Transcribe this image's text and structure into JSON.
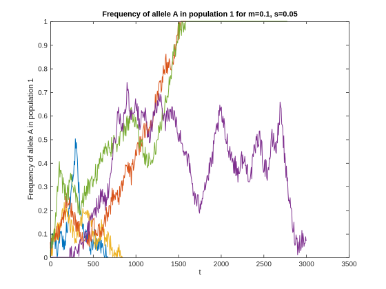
{
  "chart_data": {
    "type": "line",
    "title": "Frequency of allele A in population 1 for m=0.1, s=0.05",
    "xlabel": "t",
    "ylabel": "Frequency of allele A in population 1",
    "xlim": [
      0,
      3500
    ],
    "ylim": [
      0,
      1
    ],
    "xticks": [
      0,
      500,
      1000,
      1500,
      2000,
      2500,
      3000,
      3500
    ],
    "yticks": [
      0,
      0.1,
      0.2,
      0.3,
      0.4,
      0.5,
      0.6,
      0.7,
      0.8,
      0.9,
      1
    ],
    "xtick_labels": [
      "0",
      "500",
      "1000",
      "1500",
      "2000",
      "2500",
      "3000",
      "3500"
    ],
    "ytick_labels": [
      "0",
      "0.1",
      "0.2",
      "0.3",
      "0.4",
      "0.5",
      "0.6",
      "0.7",
      "0.8",
      "0.9",
      "1"
    ],
    "grid": false,
    "box": true,
    "series": [
      {
        "color": "#0072BD",
        "x": [
          0,
          40,
          80,
          120,
          160,
          200,
          240,
          280,
          300,
          330,
          360,
          400,
          440,
          480,
          520,
          560,
          600,
          640,
          680
        ],
        "y": [
          0.05,
          0.08,
          0.04,
          0.1,
          0.06,
          0.14,
          0.25,
          0.38,
          0.5,
          0.3,
          0.18,
          0.12,
          0.08,
          0.04,
          0.08,
          0.03,
          0.06,
          0.02,
          0.0
        ]
      },
      {
        "color": "#EDB120",
        "x": [
          0,
          50,
          100,
          150,
          200,
          250,
          300,
          350,
          400,
          450,
          500,
          550,
          600,
          650,
          700,
          750,
          800,
          850
        ],
        "y": [
          0.03,
          0.07,
          0.12,
          0.2,
          0.18,
          0.12,
          0.09,
          0.13,
          0.2,
          0.16,
          0.1,
          0.06,
          0.12,
          0.08,
          0.05,
          0.04,
          0.02,
          0.0
        ]
      },
      {
        "color": "#D95319",
        "x": [
          0,
          50,
          100,
          150,
          200,
          250,
          300,
          350,
          400,
          450,
          500,
          550,
          600,
          650,
          700,
          750,
          800,
          850,
          900,
          950,
          1000,
          1050,
          1100,
          1150,
          1200,
          1250,
          1300,
          1350,
          1400,
          1450,
          1500,
          1550,
          1600,
          1650
        ],
        "y": [
          0.03,
          0.08,
          0.12,
          0.18,
          0.24,
          0.2,
          0.15,
          0.1,
          0.06,
          0.08,
          0.13,
          0.1,
          0.12,
          0.16,
          0.22,
          0.28,
          0.26,
          0.32,
          0.38,
          0.35,
          0.42,
          0.48,
          0.55,
          0.52,
          0.6,
          0.68,
          0.74,
          0.82,
          0.8,
          0.86,
          0.95,
          1.0,
          1.0,
          1.0
        ]
      },
      {
        "color": "#77AC30",
        "x": [
          0,
          50,
          100,
          150,
          200,
          250,
          300,
          350,
          400,
          450,
          500,
          550,
          600,
          650,
          700,
          750,
          800,
          850,
          900,
          950,
          1000,
          1050,
          1100,
          1150,
          1200,
          1250,
          1300,
          1350,
          1400,
          1450,
          1500,
          1550,
          1600,
          1700,
          1800,
          1900,
          2000,
          2100,
          2200,
          2300,
          2400,
          2500,
          2600,
          2700,
          2780
        ],
        "y": [
          0.03,
          0.12,
          0.38,
          0.3,
          0.26,
          0.34,
          0.24,
          0.22,
          0.26,
          0.3,
          0.34,
          0.36,
          0.42,
          0.48,
          0.46,
          0.5,
          0.48,
          0.52,
          0.56,
          0.6,
          0.58,
          0.48,
          0.44,
          0.4,
          0.42,
          0.5,
          0.58,
          0.66,
          0.76,
          0.86,
          0.95,
          0.99,
          1.0,
          1.0,
          1.0,
          1.0,
          1.0,
          1.0,
          1.0,
          1.0,
          1.0,
          1.0,
          1.0,
          1.0,
          1.0
        ]
      },
      {
        "color": "#7E2F8E",
        "x": [
          0,
          100,
          200,
          300,
          400,
          450,
          500,
          550,
          600,
          650,
          700,
          750,
          800,
          850,
          900,
          950,
          1000,
          1050,
          1100,
          1150,
          1200,
          1250,
          1300,
          1350,
          1400,
          1450,
          1500,
          1550,
          1600,
          1650,
          1700,
          1750,
          1800,
          1850,
          1900,
          1950,
          2000,
          2050,
          2100,
          2150,
          2200,
          2250,
          2300,
          2350,
          2400,
          2450,
          2500,
          2550,
          2600,
          2650,
          2700,
          2720,
          2750,
          2800,
          2850,
          2900,
          2950,
          3000
        ],
        "y": [
          0.0,
          0.0,
          0.0,
          0.02,
          0.08,
          0.12,
          0.18,
          0.22,
          0.26,
          0.24,
          0.3,
          0.48,
          0.62,
          0.54,
          0.7,
          0.6,
          0.66,
          0.56,
          0.62,
          0.5,
          0.58,
          0.64,
          0.66,
          0.58,
          0.62,
          0.6,
          0.52,
          0.48,
          0.44,
          0.34,
          0.24,
          0.22,
          0.3,
          0.34,
          0.42,
          0.54,
          0.62,
          0.52,
          0.46,
          0.4,
          0.36,
          0.42,
          0.38,
          0.34,
          0.46,
          0.52,
          0.4,
          0.36,
          0.5,
          0.46,
          0.64,
          0.58,
          0.4,
          0.25,
          0.12,
          0.05,
          0.08,
          0.07
        ]
      }
    ]
  }
}
